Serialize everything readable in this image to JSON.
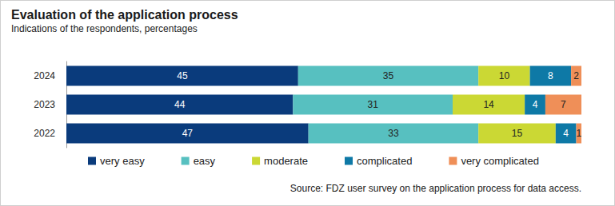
{
  "chart_data": {
    "type": "bar",
    "title": "Evaluation of the application process",
    "subtitle": "Indications of the respondents, percentages",
    "annotations": [
      "Source: FDZ user survey on the application process for data access."
    ],
    "categories": [
      "2024",
      "2023",
      "2022"
    ],
    "series": [
      {
        "name": "very easy",
        "color": "#0a3b7c",
        "values": [
          45,
          44,
          47
        ]
      },
      {
        "name": "easy",
        "color": "#57c0c0",
        "values": [
          35,
          31,
          33
        ]
      },
      {
        "name": "moderate",
        "color": "#cbd834",
        "values": [
          10,
          14,
          15
        ]
      },
      {
        "name": "complicated",
        "color": "#0e79a6",
        "values": [
          8,
          4,
          4
        ]
      },
      {
        "name": "very complicated",
        "color": "#ef8f58",
        "values": [
          2,
          7,
          1
        ]
      }
    ],
    "xlim": [
      0,
      100
    ],
    "orientation": "horizontal",
    "stacked": true,
    "data_labels": true,
    "tick_labels": "y",
    "legend": "bottom",
    "grid": false
  }
}
